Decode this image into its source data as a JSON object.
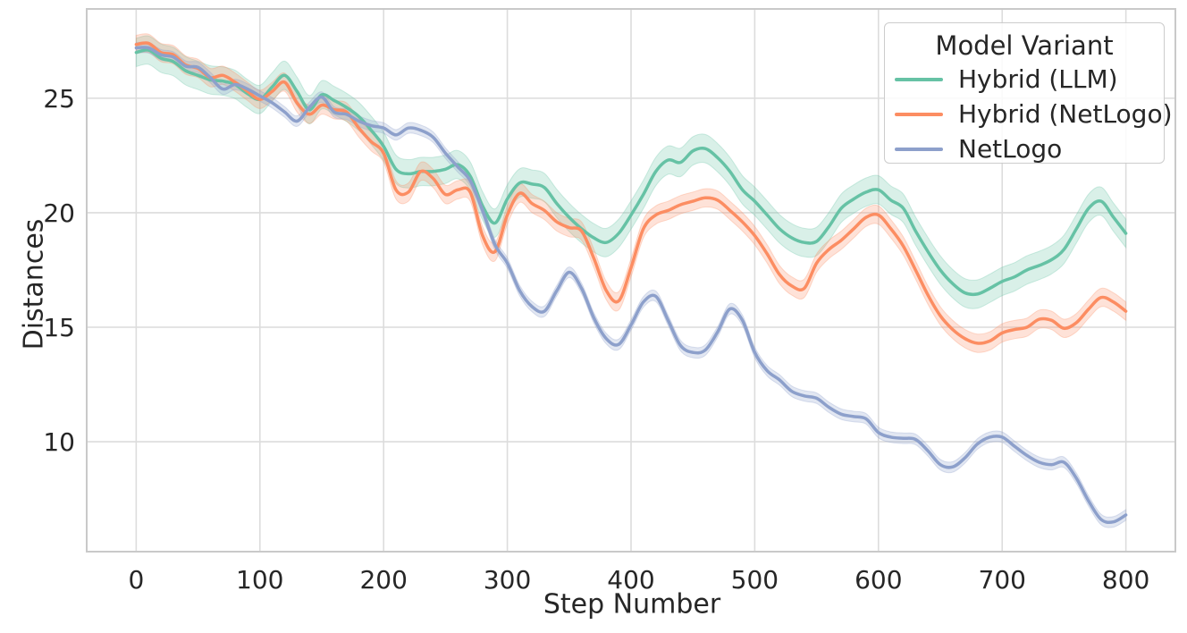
{
  "chart_data": {
    "type": "line",
    "title": "",
    "xlabel": "Step Number",
    "ylabel": "Distances",
    "legend_title": "Model Variant",
    "legend_position": "upper right",
    "grid": true,
    "background_color": "#ffffff",
    "grid_color": "#dcdcdc",
    "spine_color": "#c9c9c9",
    "text_color": "#262626",
    "xlim": [
      -40,
      840
    ],
    "ylim": [
      5.2,
      28.9
    ],
    "x_ticks": [
      0,
      100,
      200,
      300,
      400,
      500,
      600,
      700,
      800
    ],
    "y_ticks": [
      10,
      15,
      20,
      25
    ],
    "x_range": [
      0,
      800
    ],
    "x_step": 10,
    "band_alpha": 0.25,
    "series": [
      {
        "name": "Hybrid (LLM)",
        "color": "#66c2a5",
        "band_halfwidth": 0.62,
        "values": [
          27.0,
          27.1,
          26.75,
          26.6,
          26.2,
          26.0,
          25.8,
          25.75,
          25.6,
          25.2,
          24.95,
          25.5,
          26.0,
          25.3,
          24.5,
          25.15,
          24.9,
          24.6,
          24.2,
          23.6,
          22.9,
          21.9,
          21.7,
          21.8,
          21.8,
          21.9,
          22.1,
          21.6,
          20.3,
          19.55,
          20.6,
          21.3,
          21.25,
          21.1,
          20.4,
          19.8,
          19.3,
          18.9,
          18.7,
          19.1,
          19.9,
          20.8,
          21.8,
          22.3,
          22.2,
          22.7,
          22.8,
          22.4,
          21.8,
          21.0,
          20.5,
          19.9,
          19.3,
          18.9,
          18.7,
          18.75,
          19.4,
          20.2,
          20.6,
          20.9,
          21.0,
          20.55,
          20.2,
          19.2,
          18.3,
          17.5,
          16.9,
          16.5,
          16.45,
          16.7,
          17.0,
          17.2,
          17.5,
          17.7,
          17.95,
          18.4,
          19.3,
          20.2,
          20.5,
          19.8,
          19.1
        ]
      },
      {
        "name": "Hybrid (NetLogo)",
        "color": "#fc8d62",
        "band_halfwidth": 0.4,
        "values": [
          27.35,
          27.4,
          27.0,
          26.9,
          26.45,
          26.3,
          25.9,
          26.0,
          25.7,
          25.3,
          24.95,
          25.3,
          25.7,
          24.8,
          24.3,
          24.7,
          24.5,
          24.4,
          23.7,
          23.1,
          22.6,
          21.0,
          20.9,
          21.8,
          21.5,
          20.8,
          21.0,
          20.9,
          19.0,
          18.3,
          19.9,
          20.85,
          20.4,
          20.1,
          19.6,
          19.35,
          19.2,
          18.0,
          16.6,
          16.15,
          17.6,
          19.3,
          19.9,
          20.1,
          20.35,
          20.5,
          20.65,
          20.55,
          20.1,
          19.6,
          19.0,
          18.2,
          17.3,
          16.8,
          16.7,
          17.8,
          18.4,
          18.8,
          19.3,
          19.8,
          19.9,
          19.3,
          18.55,
          17.5,
          16.4,
          15.5,
          14.9,
          14.5,
          14.3,
          14.4,
          14.75,
          14.9,
          15.0,
          15.35,
          15.3,
          14.95,
          15.2,
          15.8,
          16.3,
          16.1,
          15.7
        ]
      },
      {
        "name": "NetLogo",
        "color": "#8da0cb",
        "band_halfwidth": 0.23,
        "values": [
          27.2,
          27.2,
          26.9,
          26.8,
          26.4,
          26.35,
          25.9,
          25.4,
          25.6,
          25.4,
          25.1,
          24.8,
          24.4,
          24.0,
          24.6,
          25.05,
          24.4,
          24.3,
          24.0,
          23.8,
          23.7,
          23.4,
          23.7,
          23.6,
          23.3,
          22.6,
          22.0,
          21.4,
          20.1,
          18.6,
          17.8,
          16.6,
          15.9,
          15.7,
          16.6,
          17.4,
          16.7,
          15.4,
          14.5,
          14.25,
          15.1,
          16.1,
          16.35,
          15.3,
          14.2,
          13.9,
          14.0,
          14.8,
          15.8,
          15.3,
          13.9,
          13.1,
          12.7,
          12.2,
          12.0,
          11.9,
          11.5,
          11.2,
          11.1,
          11.0,
          10.4,
          10.2,
          10.15,
          10.1,
          9.6,
          9.0,
          8.9,
          9.3,
          9.9,
          10.2,
          10.2,
          9.8,
          9.4,
          9.1,
          9.0,
          9.1,
          8.4,
          7.4,
          6.6,
          6.5,
          6.8
        ]
      }
    ]
  }
}
